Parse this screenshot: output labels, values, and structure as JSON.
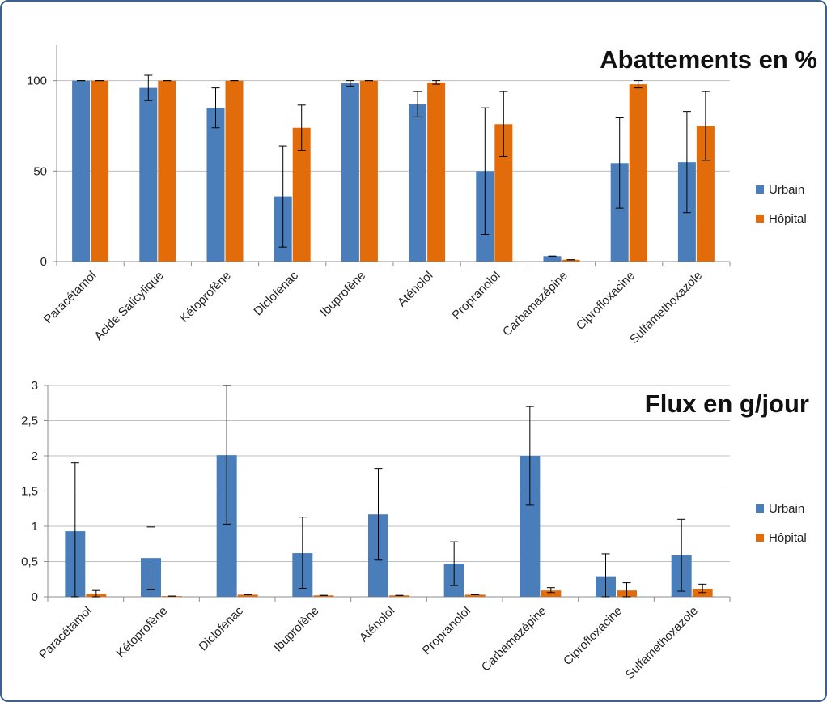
{
  "colors": {
    "urbain": "#4a7ebb",
    "hopital": "#e36c0a",
    "grid": "#bfbfbf",
    "axis": "#8c8c8c",
    "frame": "#3d5f92"
  },
  "chart_data": [
    {
      "type": "bar",
      "title": "Abattements en %",
      "categories": [
        "Paracétamol",
        "Acide Salicylique",
        "Kétoprofène",
        "Diclofenac",
        "Ibuprofène",
        "Aténolol",
        "Propranolol",
        "Carbamazépine",
        "Ciprofloxacine",
        "Sulfamethoxazole"
      ],
      "series": [
        {
          "name": "Urbain",
          "values": [
            100,
            96,
            85,
            36,
            98.5,
            87,
            50,
            3,
            54.5,
            55
          ],
          "err_low": [
            0,
            7,
            11,
            28,
            1.5,
            7,
            35,
            0,
            25,
            28
          ],
          "err_high": [
            0,
            7,
            11,
            28,
            1.5,
            7,
            35,
            0,
            25,
            28
          ]
        },
        {
          "name": "Hôpital",
          "values": [
            100,
            100,
            100,
            74,
            100,
            99,
            76,
            1,
            98,
            75
          ],
          "err_low": [
            0,
            0,
            0,
            12.5,
            0,
            1,
            18,
            0,
            2,
            19
          ],
          "err_high": [
            0,
            0,
            0,
            12.5,
            0,
            1,
            18,
            0,
            2,
            19
          ]
        }
      ],
      "ylim": [
        0,
        120
      ],
      "yticks": [
        0,
        50,
        100
      ],
      "ytick_labels": [
        "0",
        "50",
        "100"
      ],
      "legend": "right",
      "grid": true
    },
    {
      "type": "bar",
      "title": "Flux en g/jour",
      "categories": [
        "Paracétamol",
        "Kétoprofène",
        "Diclofenac",
        "Ibuprofène",
        "Aténolol",
        "Propranolol",
        "Carbamazépine",
        "Ciprofloxacine",
        "Sulfamethoxazole"
      ],
      "series": [
        {
          "name": "Urbain",
          "values": [
            0.93,
            0.55,
            2.01,
            0.62,
            1.17,
            0.47,
            2.0,
            0.28,
            0.59
          ],
          "err_low": [
            0.93,
            0.45,
            0.98,
            0.5,
            0.65,
            0.31,
            0.7,
            0.28,
            0.51
          ],
          "err_high": [
            0.97,
            0.44,
            0.99,
            0.51,
            0.65,
            0.31,
            0.7,
            0.33,
            0.51
          ]
        },
        {
          "name": "Hôpital",
          "values": [
            0.04,
            0.01,
            0.03,
            0.02,
            0.02,
            0.03,
            0.09,
            0.09,
            0.11
          ],
          "err_low": [
            0.04,
            0,
            0,
            0,
            0,
            0,
            0.03,
            0.09,
            0.05
          ],
          "err_high": [
            0.05,
            0,
            0,
            0,
            0,
            0,
            0.04,
            0.11,
            0.07
          ]
        }
      ],
      "ylim": [
        0,
        3
      ],
      "yticks": [
        0,
        0.5,
        1,
        1.5,
        2,
        2.5,
        3
      ],
      "ytick_labels": [
        "0",
        "0,5",
        "1",
        "1,5",
        "2",
        "2,5",
        "3"
      ],
      "legend": "right",
      "grid": true
    }
  ]
}
